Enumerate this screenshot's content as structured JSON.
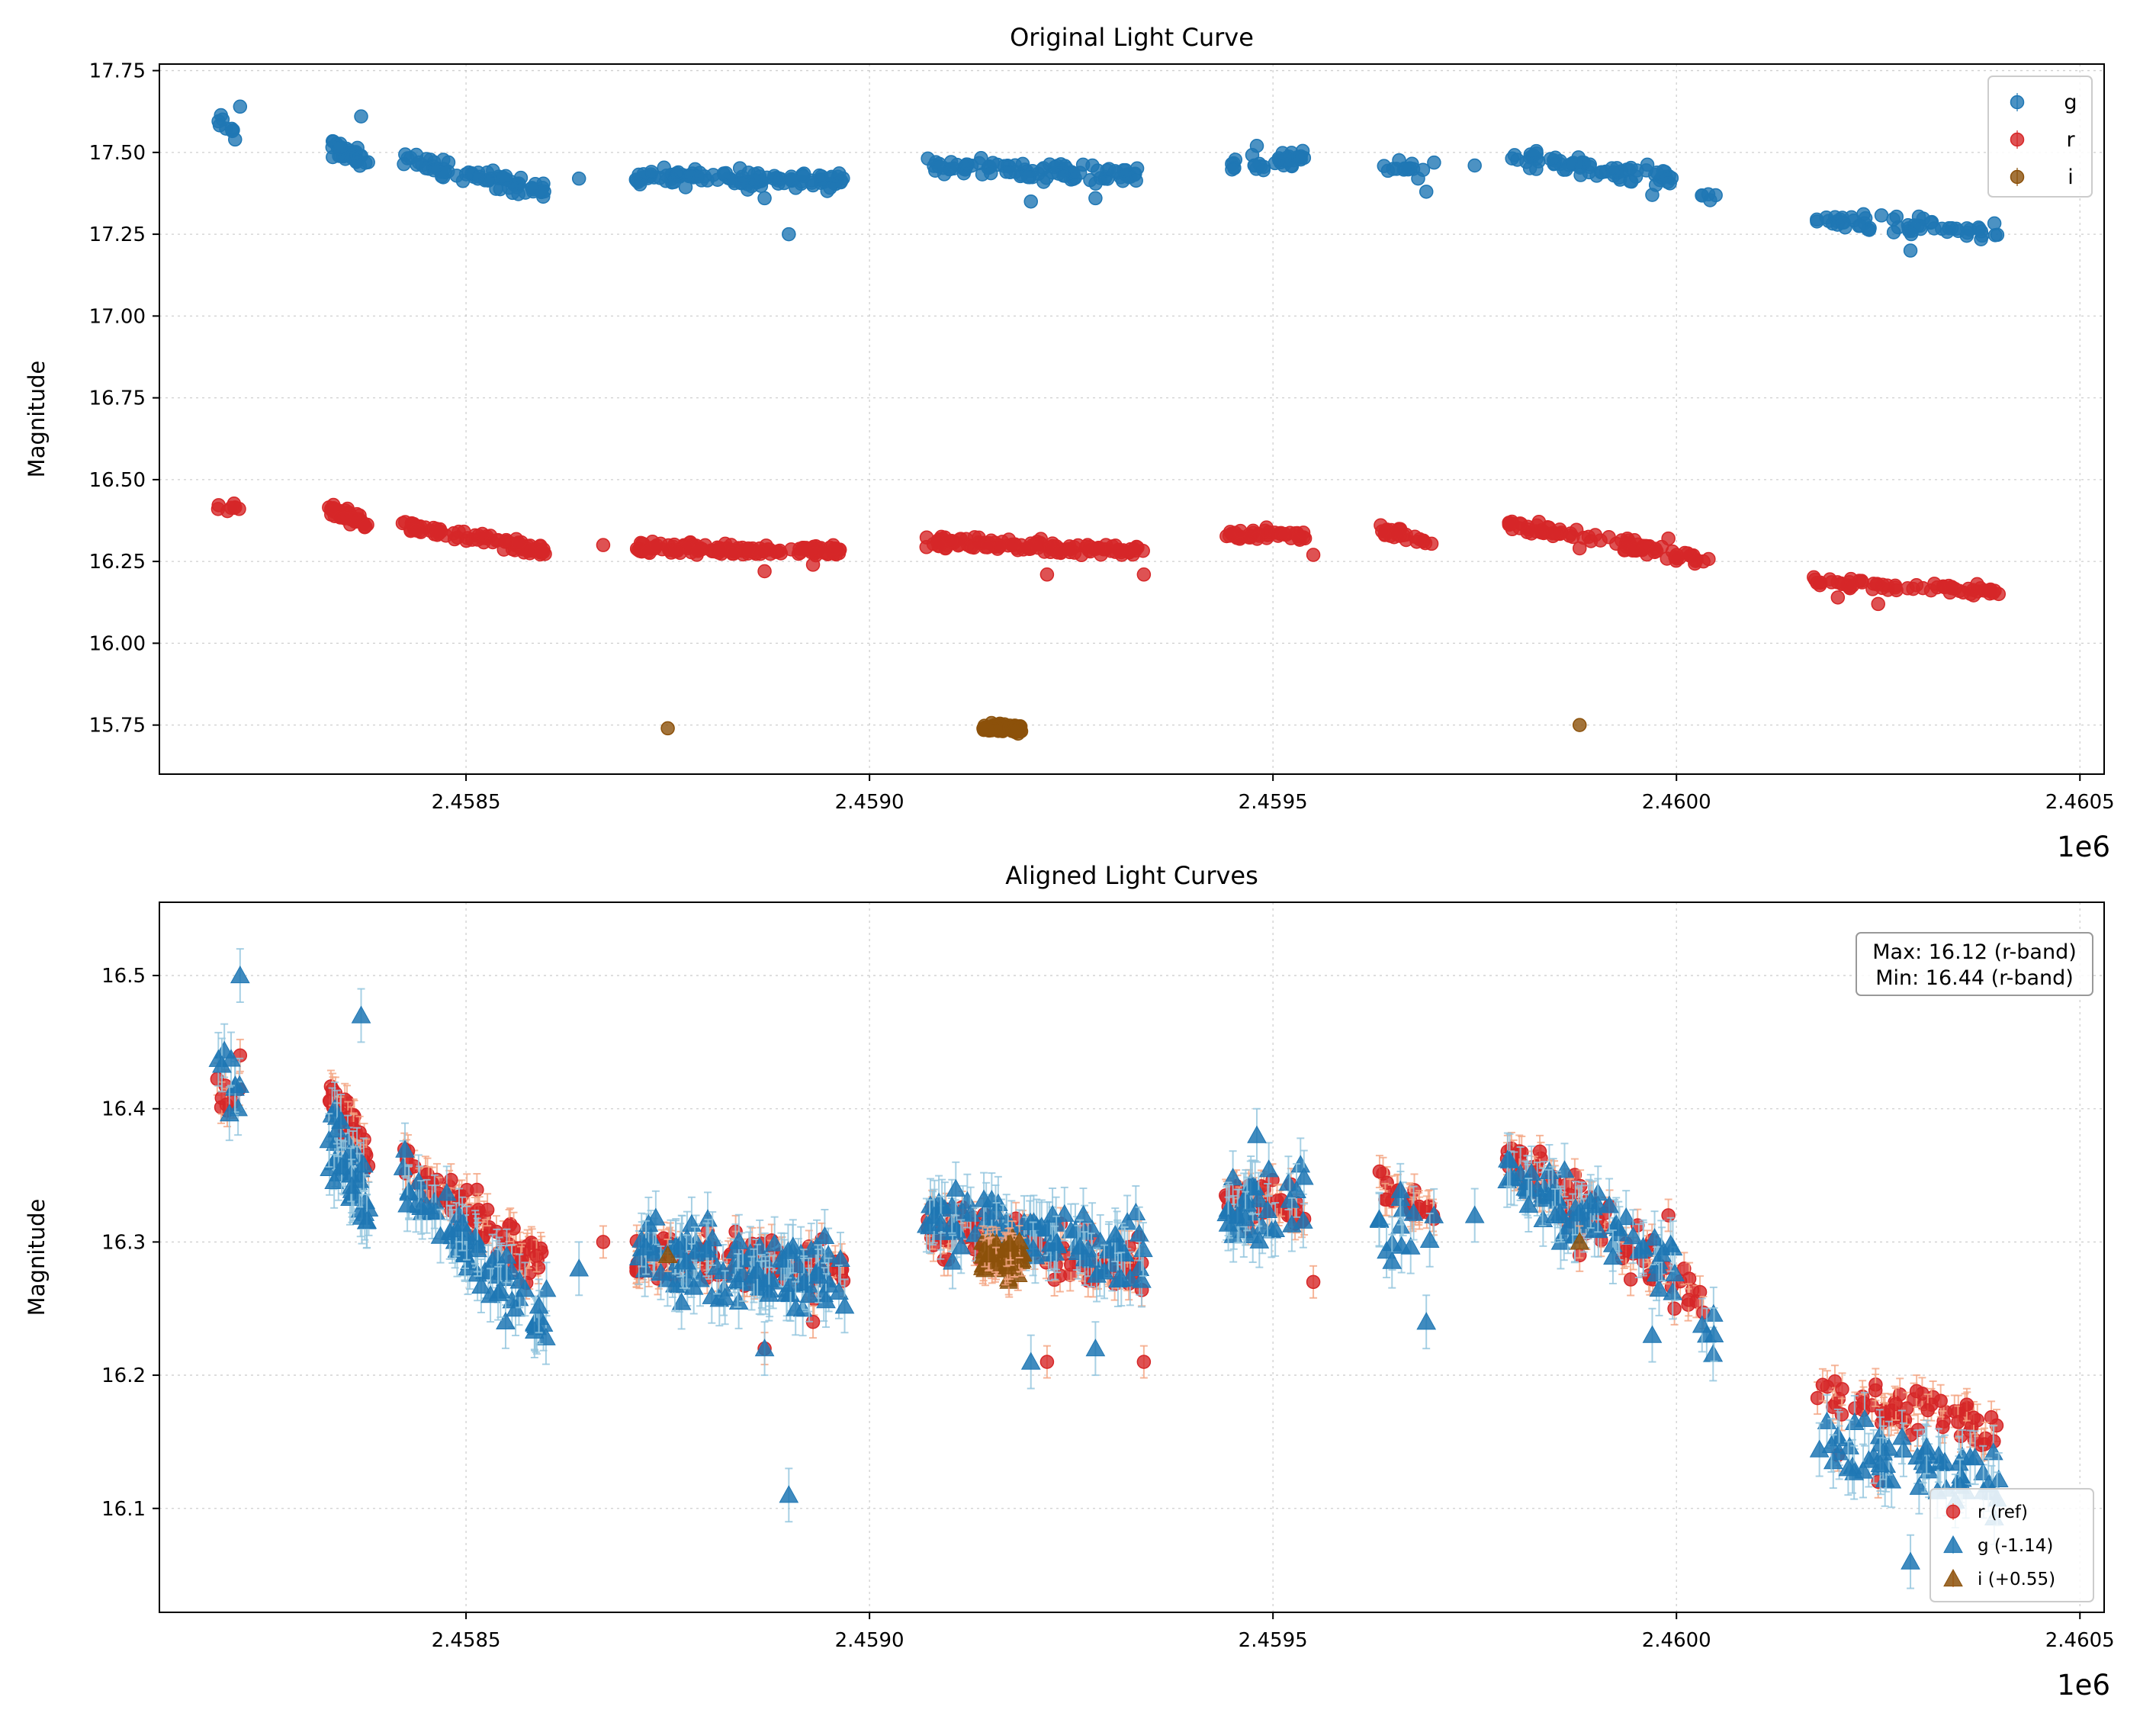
{
  "chart_data": [
    {
      "type": "scatter",
      "title": "Original Light Curve",
      "xlabel": "",
      "ylabel": "Magnitude",
      "x_offset_label": "1e6",
      "xlim": [
        2.45812,
        2.46053
      ],
      "ylim": [
        17.77,
        15.6
      ],
      "y_inverted": true,
      "x_ticks": [
        2.4585,
        2.459,
        2.4595,
        2.46,
        2.4605
      ],
      "x_tick_labels": [
        "2.4585",
        "2.4590",
        "2.4595",
        "2.4600",
        "2.4605"
      ],
      "y_ticks": [
        15.75,
        16.0,
        16.25,
        16.5,
        16.75,
        17.0,
        17.25,
        17.5,
        17.75
      ],
      "y_tick_labels": [
        "15.75",
        "16.00",
        "16.25",
        "16.50",
        "16.75",
        "17.00",
        "17.25",
        "17.50",
        "17.75"
      ],
      "legend": {
        "placement": "top-right",
        "entries": [
          "g",
          "r",
          "i"
        ]
      },
      "series": [
        {
          "name": "g",
          "color": "#1f77b4",
          "marker": "circle",
          "segments": [
            [
              2.45819,
              2.45822,
              17.6,
              17.54,
              9
            ],
            [
              2.45833,
              2.45838,
              17.52,
              17.47,
              40
            ],
            [
              2.45842,
              2.4586,
              17.48,
              17.38,
              70
            ],
            [
              2.45871,
              2.45897,
              17.43,
              17.41,
              110
            ],
            [
              2.45907,
              2.45934,
              17.46,
              17.43,
              95
            ],
            [
              2.45944,
              2.45954,
              17.46,
              17.48,
              35
            ],
            [
              2.45963,
              2.4597,
              17.45,
              17.45,
              14
            ],
            [
              2.45979,
              2.46,
              17.49,
              17.42,
              70
            ],
            [
              2.46003,
              2.46005,
              17.38,
              17.37,
              5
            ],
            [
              2.46017,
              2.4604,
              17.29,
              17.26,
              60
            ]
          ],
          "spread": 0.035,
          "extra_points": [
            [
              2.4589,
              17.25
            ],
            [
              2.45887,
              17.36
            ],
            [
              2.4592,
              17.35
            ],
            [
              2.45928,
              17.36
            ],
            [
              2.45969,
              17.38
            ],
            [
              2.45822,
              17.64
            ],
            [
              2.45837,
              17.61
            ],
            [
              2.45864,
              17.42
            ],
            [
              2.45948,
              17.52
            ],
            [
              2.45975,
              17.46
            ],
            [
              2.45997,
              17.37
            ],
            [
              2.46029,
              17.2
            ]
          ]
        },
        {
          "name": "r",
          "color": "#d62728",
          "marker": "circle",
          "segments": [
            [
              2.45819,
              2.45822,
              16.41,
              16.41,
              8
            ],
            [
              2.45833,
              2.45838,
              16.41,
              16.36,
              45
            ],
            [
              2.45842,
              2.4586,
              16.36,
              16.28,
              80
            ],
            [
              2.45871,
              2.45897,
              16.29,
              16.28,
              130
            ],
            [
              2.45907,
              2.45934,
              16.31,
              16.28,
              120
            ],
            [
              2.45944,
              2.45954,
              16.33,
              16.33,
              45
            ],
            [
              2.45963,
              2.4597,
              16.35,
              16.31,
              25
            ],
            [
              2.45979,
              2.46004,
              16.37,
              16.25,
              85
            ],
            [
              2.46017,
              2.4604,
              16.19,
              16.16,
              65
            ]
          ],
          "spread": 0.025,
          "extra_points": [
            [
              2.45867,
              16.3
            ],
            [
              2.45887,
              16.22
            ],
            [
              2.45893,
              16.24
            ],
            [
              2.45922,
              16.21
            ],
            [
              2.45934,
              16.21
            ],
            [
              2.45955,
              16.27
            ],
            [
              2.45988,
              16.29
            ],
            [
              2.45999,
              16.32
            ],
            [
              2.4602,
              16.14
            ],
            [
              2.46025,
              16.12
            ]
          ]
        },
        {
          "name": "i",
          "color": "#8c510a",
          "marker": "circle",
          "segments": [
            [
              2.45914,
              2.45919,
              15.74,
              15.74,
              55
            ]
          ],
          "spread": 0.02,
          "extra_points": [
            [
              2.45875,
              15.74
            ],
            [
              2.45988,
              15.75
            ]
          ]
        }
      ]
    },
    {
      "type": "scatter",
      "title": "Aligned Light Curves",
      "xlabel": "",
      "ylabel": "Magnitude",
      "x_offset_label": "1e6",
      "xlim": [
        2.45812,
        2.46053
      ],
      "ylim": [
        16.555,
        16.022
      ],
      "y_inverted": true,
      "x_ticks": [
        2.4585,
        2.459,
        2.4595,
        2.46,
        2.4605
      ],
      "x_tick_labels": [
        "2.4585",
        "2.4590",
        "2.4595",
        "2.4600",
        "2.4605"
      ],
      "y_ticks": [
        16.1,
        16.2,
        16.3,
        16.4,
        16.5
      ],
      "y_tick_labels": [
        "16.1",
        "16.2",
        "16.3",
        "16.4",
        "16.5"
      ],
      "annotation": {
        "line1": "Max: 16.12 (r-band)",
        "line2": "Min: 16.44 (r-band)",
        "placement": "top-right"
      },
      "legend": {
        "placement": "bottom-right",
        "entries": [
          "r (ref)",
          "g (-1.14)",
          "i (+0.55)"
        ]
      },
      "series": [
        {
          "name": "r (ref)",
          "color": "#d62728",
          "marker": "circle",
          "errorbar_color": "#f4a582",
          "yerr": 0.012,
          "segments": [
            [
              2.45819,
              2.45822,
              16.41,
              16.41,
              8
            ],
            [
              2.45833,
              2.45838,
              16.41,
              16.36,
              45
            ],
            [
              2.45842,
              2.4586,
              16.36,
              16.28,
              80
            ],
            [
              2.45871,
              2.45897,
              16.29,
              16.28,
              130
            ],
            [
              2.45907,
              2.45934,
              16.31,
              16.28,
              120
            ],
            [
              2.45944,
              2.45954,
              16.33,
              16.33,
              45
            ],
            [
              2.45963,
              2.4597,
              16.35,
              16.31,
              25
            ],
            [
              2.45979,
              2.46004,
              16.37,
              16.25,
              85
            ],
            [
              2.46017,
              2.4604,
              16.19,
              16.16,
              65
            ]
          ],
          "spread": 0.025,
          "extra_points": [
            [
              2.45867,
              16.3
            ],
            [
              2.45887,
              16.22
            ],
            [
              2.45893,
              16.24
            ],
            [
              2.45922,
              16.21
            ],
            [
              2.45934,
              16.21
            ],
            [
              2.45955,
              16.27
            ],
            [
              2.45988,
              16.29
            ],
            [
              2.45999,
              16.32
            ],
            [
              2.4602,
              16.14
            ],
            [
              2.46025,
              16.12
            ],
            [
              2.45822,
              16.44
            ]
          ]
        },
        {
          "name": "g (-1.14)",
          "color": "#1f77b4",
          "marker": "triangle",
          "errorbar_color": "#92c5de",
          "yerr": 0.02,
          "segments": [
            [
              2.45819,
              2.45822,
              16.46,
              16.4,
              9
            ],
            [
              2.45833,
              2.45838,
              16.38,
              16.33,
              40
            ],
            [
              2.45842,
              2.4586,
              16.34,
              16.24,
              70
            ],
            [
              2.45871,
              2.45897,
              16.29,
              16.27,
              110
            ],
            [
              2.45907,
              2.45934,
              16.32,
              16.29,
              95
            ],
            [
              2.45944,
              2.45954,
              16.32,
              16.34,
              35
            ],
            [
              2.45963,
              2.4597,
              16.31,
              16.31,
              14
            ],
            [
              2.45979,
              2.46,
              16.35,
              16.28,
              70
            ],
            [
              2.46003,
              2.46005,
              16.24,
              16.23,
              5
            ],
            [
              2.46017,
              2.4604,
              16.15,
              16.12,
              60
            ]
          ],
          "spread": 0.035,
          "extra_points": [
            [
              2.4589,
              16.11
            ],
            [
              2.45887,
              16.22
            ],
            [
              2.4592,
              16.21
            ],
            [
              2.45928,
              16.22
            ],
            [
              2.45969,
              16.24
            ],
            [
              2.45822,
              16.5
            ],
            [
              2.45837,
              16.47
            ],
            [
              2.45864,
              16.28
            ],
            [
              2.45948,
              16.38
            ],
            [
              2.45975,
              16.32
            ],
            [
              2.45997,
              16.23
            ],
            [
              2.46029,
              16.06
            ]
          ]
        },
        {
          "name": "i (+0.55)",
          "color": "#8c510a",
          "marker": "triangle",
          "errorbar_color": "#f4a582",
          "yerr": 0.012,
          "segments": [
            [
              2.45914,
              2.45919,
              16.29,
              16.29,
              55
            ]
          ],
          "spread": 0.02,
          "extra_points": [
            [
              2.45875,
              16.29
            ],
            [
              2.45988,
              16.3
            ]
          ]
        }
      ]
    }
  ]
}
